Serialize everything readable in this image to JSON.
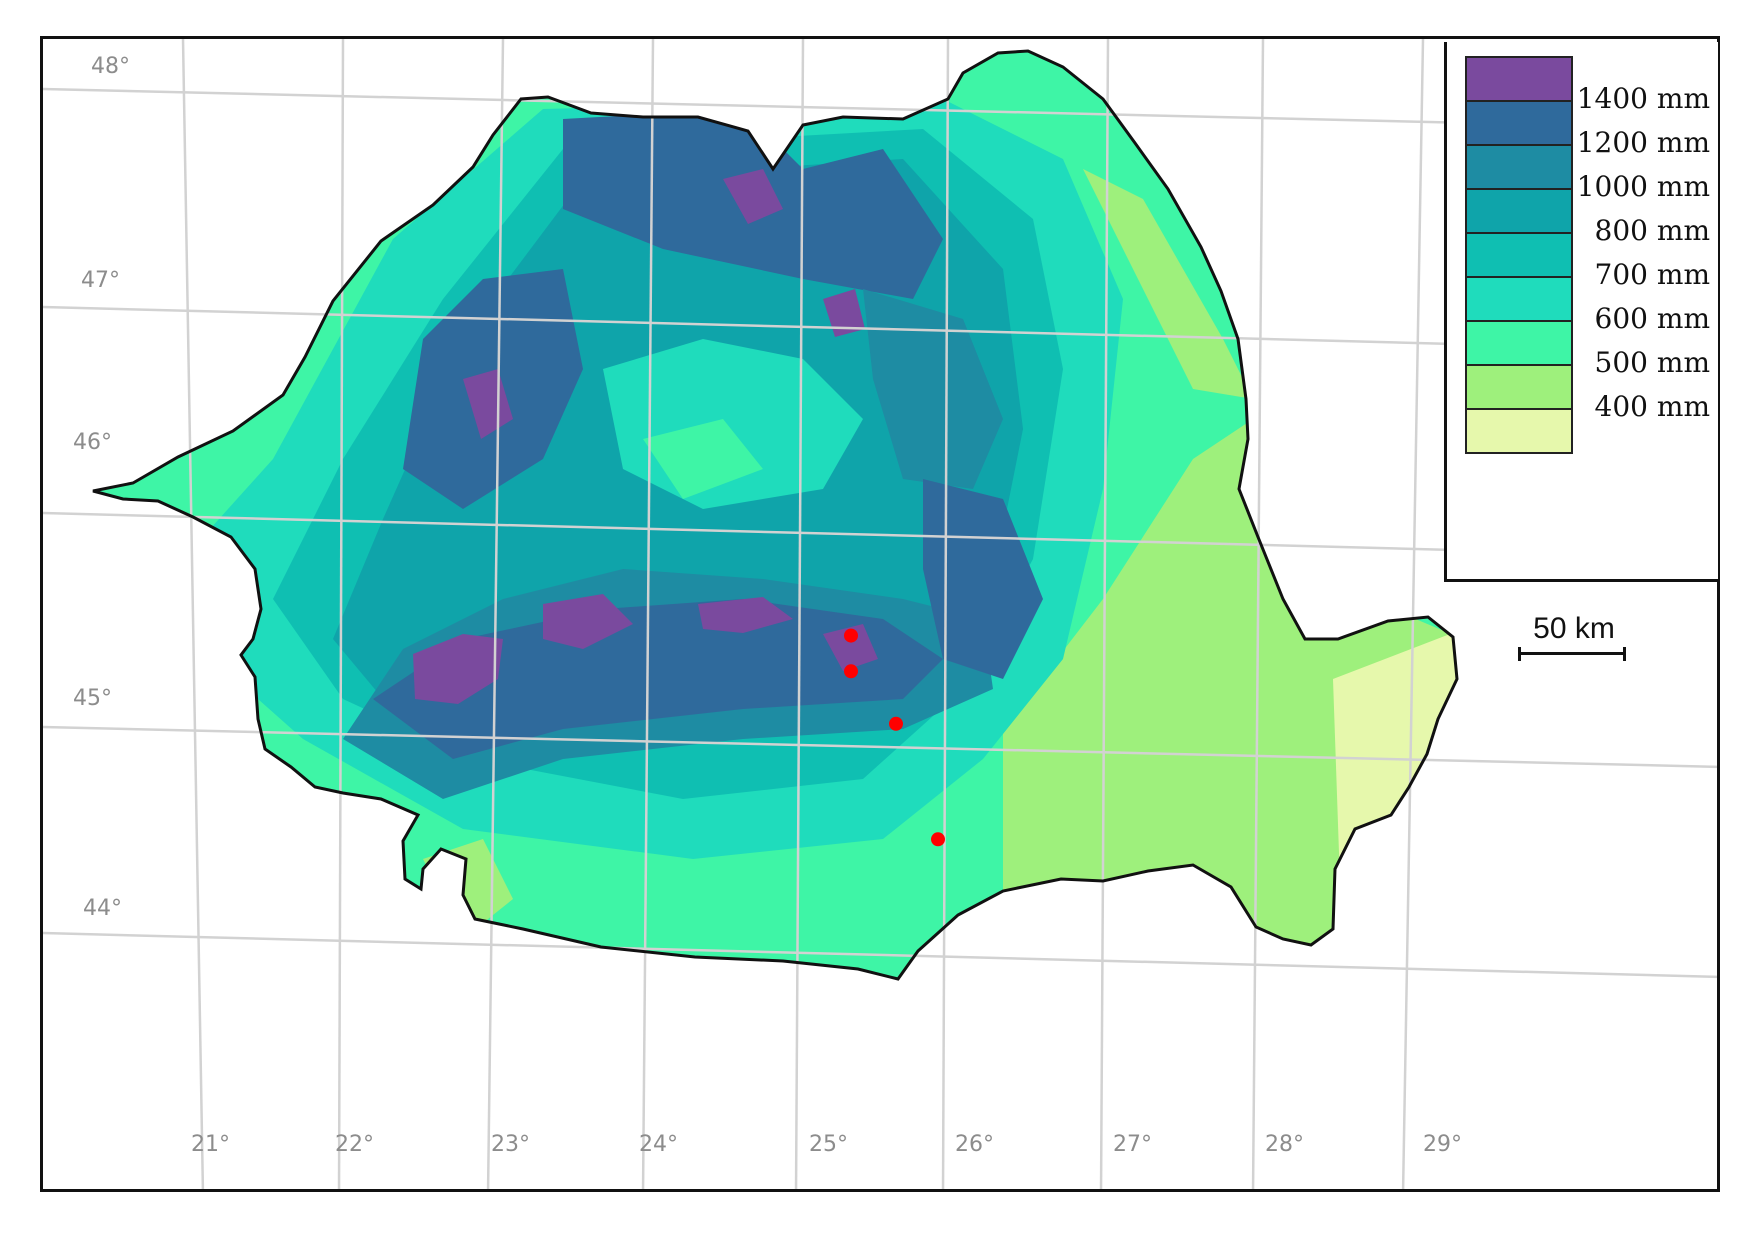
{
  "map": {
    "legend": {
      "items": [
        {
          "label": "",
          "color": "#7a4a9e"
        },
        {
          "label": "1400 mm",
          "color": "#2f6a9c"
        },
        {
          "label": "1200 mm",
          "color": "#1e8ca3"
        },
        {
          "label": "1000 mm",
          "color": "#0fa4aa"
        },
        {
          "label": "800 mm",
          "color": "#0fbfb2"
        },
        {
          "label": "700 mm",
          "color": "#1fdcbc"
        },
        {
          "label": "600 mm",
          "color": "#3ef5a6"
        },
        {
          "label": "500 mm",
          "color": "#9ef07c"
        },
        {
          "label": "400 mm",
          "color": "#e6f8ac"
        }
      ]
    },
    "scale_label": "50 km",
    "latitude_labels": [
      "48°",
      "47°",
      "46°",
      "45°",
      "44°"
    ],
    "longitude_labels": [
      "21°",
      "22°",
      "23°",
      "24°",
      "25°",
      "26°",
      "27°",
      "28°",
      "29°"
    ],
    "points": [
      {
        "lon": 25.32,
        "lat": 45.34
      },
      {
        "lon": 25.32,
        "lat": 45.17
      },
      {
        "lon": 25.62,
        "lat": 44.92
      },
      {
        "lon": 25.9,
        "lat": 44.37
      }
    ],
    "point_color": "#ff0000"
  }
}
